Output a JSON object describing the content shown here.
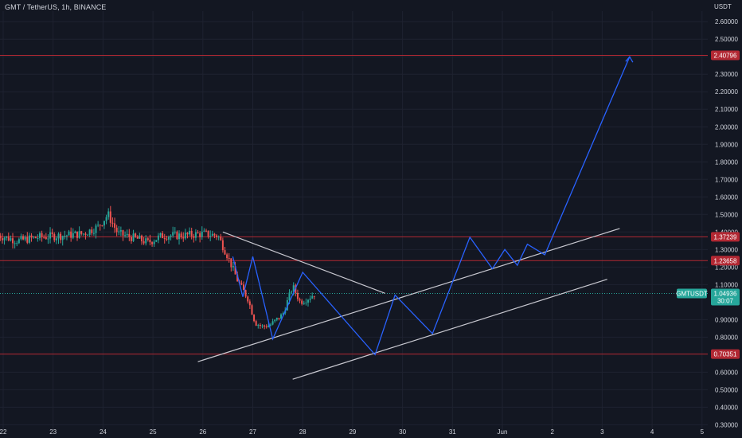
{
  "header": {
    "title": "GMT / TetherUS, 1h, BINANCE",
    "currency": "USDT"
  },
  "colors": {
    "background": "#131722",
    "grid": "#1e2230",
    "bull": "#26a69a",
    "bear": "#ef5350",
    "pattern_line": "#2962ff",
    "trend_line": "#c8c8d0",
    "level_line": "#b22833",
    "level_tag": "#b22833",
    "price_tag": "#26a69a"
  },
  "chart_data": {
    "type": "candlestick",
    "symbol": "GMTUSDT",
    "ylim": [
      0.27,
      2.66
    ],
    "x_ticks": [
      "22",
      "23",
      "24",
      "25",
      "26",
      "27",
      "28",
      "29",
      "30",
      "31",
      "Jun",
      "2",
      "3",
      "4",
      "5"
    ],
    "x_tick_days": [
      22,
      23,
      24,
      25,
      26,
      27,
      28,
      29,
      30,
      31,
      32,
      33,
      34,
      35,
      36
    ],
    "xlim": [
      22,
      36.05
    ],
    "y_ticks": [
      2.6,
      2.5,
      2.4,
      2.3,
      2.2,
      2.1,
      2.0,
      1.9,
      1.8,
      1.7,
      1.6,
      1.5,
      1.4,
      1.3,
      1.2,
      1.1,
      0.9,
      0.8,
      0.6,
      0.5,
      0.4,
      0.3
    ],
    "y_tick_labels": [
      "2.60000",
      "2.50000",
      "2.40000",
      "2.30000",
      "2.20000",
      "2.10000",
      "2.00000",
      "1.90000",
      "1.80000",
      "1.70000",
      "1.60000",
      "1.50000",
      "1.40000",
      "1.30000",
      "1.20000",
      "1.10000",
      "0.90000",
      "0.80000",
      "0.60000",
      "0.50000",
      "0.40000",
      "0.30000"
    ],
    "horizontal_levels": [
      {
        "value": 2.40796,
        "label": "2.40796"
      },
      {
        "value": 1.37239,
        "label": "1.37239"
      },
      {
        "value": 1.23658,
        "label": "1.23658"
      },
      {
        "value": 0.70351,
        "label": "0.70351"
      }
    ],
    "current_price": {
      "symbol": "GMTUSDT",
      "value": 1.04936,
      "label": "1.04936",
      "countdown": "30:07"
    },
    "candle_anchors": [
      [
        21.9,
        1.38
      ],
      [
        22.3,
        1.35
      ],
      [
        22.7,
        1.37
      ],
      [
        23.2,
        1.38
      ],
      [
        23.6,
        1.39
      ],
      [
        23.9,
        1.43
      ],
      [
        24.1,
        1.5
      ],
      [
        24.3,
        1.39
      ],
      [
        24.7,
        1.36
      ],
      [
        24.9,
        1.34
      ],
      [
        25.2,
        1.38
      ],
      [
        25.6,
        1.38
      ],
      [
        26.0,
        1.39
      ],
      [
        26.3,
        1.38
      ],
      [
        26.5,
        1.26
      ],
      [
        26.7,
        1.12
      ],
      [
        26.9,
        1.02
      ],
      [
        27.05,
        0.88
      ],
      [
        27.2,
        0.86
      ],
      [
        27.35,
        0.87
      ],
      [
        27.6,
        0.93
      ],
      [
        27.8,
        1.09
      ],
      [
        27.95,
        1.0
      ],
      [
        28.1,
        1.02
      ],
      [
        28.25,
        1.05
      ]
    ],
    "blue_projection": [
      [
        26.6,
        1.26
      ],
      [
        26.8,
        1.03
      ],
      [
        27.0,
        1.26
      ],
      [
        27.4,
        0.79
      ],
      [
        28.0,
        1.17
      ],
      [
        29.45,
        0.7
      ],
      [
        29.85,
        1.04
      ],
      [
        30.6,
        0.82
      ],
      [
        31.35,
        1.37
      ],
      [
        31.8,
        1.19
      ],
      [
        32.05,
        1.3
      ],
      [
        32.3,
        1.21
      ],
      [
        32.5,
        1.33
      ],
      [
        32.85,
        1.27
      ],
      [
        34.55,
        2.4
      ]
    ],
    "arrow_tip": [
      34.55,
      2.4
    ],
    "trend_lines": [
      {
        "name": "descending-resistance",
        "from": [
          26.4,
          1.4
        ],
        "to": [
          29.65,
          1.05
        ]
      },
      {
        "name": "lower-support-upper",
        "from": [
          25.9,
          0.66
        ],
        "to": [
          34.35,
          1.42
        ]
      },
      {
        "name": "lower-support-lower",
        "from": [
          27.8,
          0.56
        ],
        "to": [
          34.1,
          1.13
        ]
      }
    ]
  }
}
